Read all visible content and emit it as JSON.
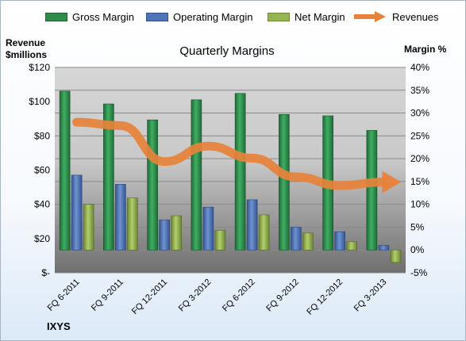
{
  "chart_data": {
    "type": "bar",
    "title": "Quarterly Margins",
    "ylabel_left": "Revenue\n$millions",
    "ylabel_right": "Margin %",
    "categories": [
      "FQ 6-2011",
      "FQ 9-2011",
      "FQ 12-2011",
      "FQ 3-2012",
      "FQ 6-2012",
      "FQ 9-2012",
      "FQ 12-2012",
      "FQ 3-2013"
    ],
    "series": [
      {
        "name": "Gross Margin",
        "axis": "right",
        "values": [
          34.8,
          32.0,
          28.5,
          32.9,
          34.3,
          29.7,
          29.4,
          26.2
        ],
        "color": "#2e8b4a"
      },
      {
        "name": "Operating Margin",
        "axis": "right",
        "values": [
          16.4,
          14.4,
          6.6,
          9.4,
          11.0,
          5.0,
          4.0,
          1.0
        ],
        "color": "#4f74b8"
      },
      {
        "name": "Net Margin",
        "axis": "right",
        "values": [
          10.0,
          11.4,
          7.5,
          4.3,
          7.7,
          3.7,
          1.8,
          -2.7
        ],
        "color": "#96b450"
      },
      {
        "name": "Revenues",
        "axis": "left",
        "type": "line",
        "values": [
          88,
          86,
          65,
          74,
          67,
          56,
          51,
          53
        ],
        "color": "#e8823a"
      }
    ],
    "ylim_left": [
      0,
      120
    ],
    "ylim_right": [
      -5,
      40
    ],
    "yticks_left": [
      "$-",
      "$20",
      "$40",
      "$60",
      "$80",
      "$100",
      "$120"
    ],
    "yticks_right": [
      "-5%",
      "0%",
      "5%",
      "10%",
      "15%",
      "20%",
      "25%",
      "30%",
      "35%",
      "40%"
    ],
    "grid": true,
    "legend": "top"
  },
  "company": "IXYS"
}
